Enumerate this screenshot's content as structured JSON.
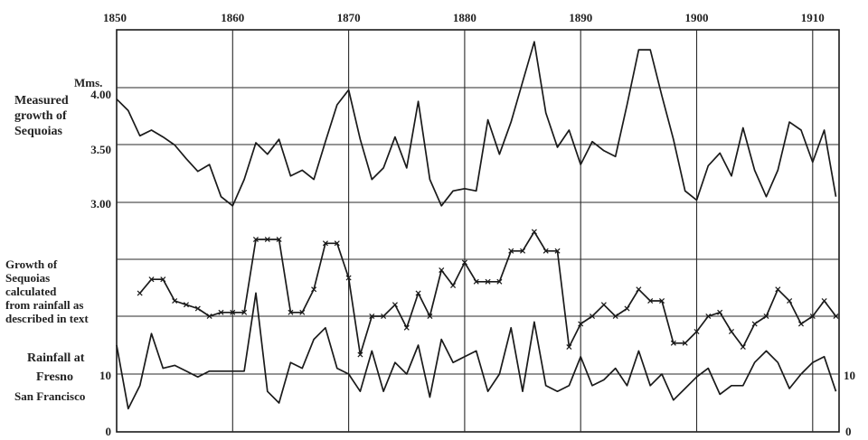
{
  "chart_data": {
    "type": "line",
    "x_range": [
      1850,
      1912
    ],
    "x_ticks": [
      "1850",
      "1860",
      "1870",
      "1880",
      "1890",
      "1900",
      "1910"
    ],
    "panels": [
      {
        "id": "measured",
        "labels": [
          "Measured",
          "growth of",
          "Sequoias"
        ],
        "unit_label": "Mms.",
        "y_ticks": [
          "4.00",
          "3.50",
          "3.00"
        ],
        "ylim": [
          2.5,
          4.5
        ],
        "series": {
          "name": "Measured growth of Sequoias",
          "x": [
            1850,
            1851,
            1852,
            1853,
            1854,
            1855,
            1856,
            1857,
            1858,
            1859,
            1860,
            1861,
            1862,
            1863,
            1864,
            1865,
            1866,
            1867,
            1868,
            1869,
            1870,
            1871,
            1872,
            1873,
            1874,
            1875,
            1876,
            1877,
            1878,
            1879,
            1880,
            1881,
            1882,
            1883,
            1884,
            1885,
            1886,
            1887,
            1888,
            1889,
            1890,
            1891,
            1892,
            1893,
            1894,
            1895,
            1896,
            1897,
            1898,
            1899,
            1900,
            1901,
            1902,
            1903,
            1904,
            1905,
            1906,
            1907,
            1908,
            1909,
            1910,
            1911,
            1912
          ],
          "y": [
            3.9,
            3.8,
            3.58,
            3.63,
            3.57,
            3.5,
            3.38,
            3.27,
            3.33,
            3.05,
            2.97,
            3.2,
            3.52,
            3.42,
            3.55,
            3.23,
            3.28,
            3.2,
            3.53,
            3.85,
            3.98,
            3.55,
            3.2,
            3.3,
            3.57,
            3.3,
            3.88,
            3.2,
            2.97,
            3.1,
            3.12,
            3.1,
            3.72,
            3.42,
            3.7,
            4.05,
            4.4,
            3.78,
            3.48,
            3.63,
            3.33,
            3.53,
            3.45,
            3.4,
            3.85,
            4.33,
            4.33,
            3.93,
            3.55,
            3.1,
            3.02,
            3.32,
            3.43,
            3.23,
            3.65,
            3.28,
            3.05,
            3.28,
            3.7,
            3.63,
            3.35,
            3.63,
            3.05
          ]
        }
      },
      {
        "id": "calculated",
        "labels": [
          "Growth of",
          "Sequoias",
          "calculated",
          "from rainfall as",
          "described in text"
        ],
        "series": {
          "name": "Growth of Sequoias calculated from rainfall",
          "x": [
            1852,
            1853,
            1854,
            1855,
            1856,
            1857,
            1858,
            1859,
            1860,
            1861,
            1862,
            1863,
            1864,
            1865,
            1866,
            1867,
            1868,
            1869,
            1870,
            1871,
            1872,
            1873,
            1874,
            1875,
            1876,
            1877,
            1878,
            1879,
            1880,
            1881,
            1882,
            1883,
            1884,
            1885,
            1886,
            1887,
            1888,
            1889,
            1890,
            1891,
            1892,
            1893,
            1894,
            1895,
            1896,
            1897,
            1898,
            1899,
            1900,
            1901,
            1902,
            1903,
            1904,
            1905,
            1906,
            1907,
            1908,
            1909,
            1910,
            1911,
            1912
          ],
          "y": [
            0.3,
            0.48,
            0.48,
            0.2,
            0.15,
            0.1,
            0,
            0.05,
            0.05,
            0.05,
            1.0,
            1.0,
            1.0,
            0.05,
            0.05,
            0.35,
            0.95,
            0.95,
            0.5,
            -0.5,
            0,
            0,
            0.15,
            -0.15,
            0.3,
            0,
            0.6,
            0.4,
            0.7,
            0.45,
            0.45,
            0.45,
            0.85,
            0.85,
            1.1,
            0.85,
            0.85,
            -0.4,
            -0.1,
            0,
            0.15,
            0,
            0.1,
            0.35,
            0.2,
            0.2,
            -0.35,
            -0.35,
            -0.2,
            0,
            0.05,
            -0.2,
            -0.4,
            -0.1,
            0,
            0.35,
            0.2,
            -0.1,
            0,
            0.2,
            0
          ]
        }
      },
      {
        "id": "rainfall",
        "labels": [
          "Rainfall at",
          "Fresno",
          "San Francisco"
        ],
        "y_ticks_left": [
          "10",
          "0"
        ],
        "y_ticks_right": [
          "10",
          "0"
        ],
        "ylim": [
          0,
          20
        ],
        "series": {
          "name": "Rainfall at Fresno / San Francisco",
          "x": [
            1850,
            1851,
            1852,
            1853,
            1854,
            1855,
            1856,
            1857,
            1858,
            1859,
            1860,
            1861,
            1862,
            1863,
            1864,
            1865,
            1866,
            1867,
            1868,
            1869,
            1870,
            1871,
            1872,
            1873,
            1874,
            1875,
            1876,
            1877,
            1878,
            1879,
            1880,
            1881,
            1882,
            1883,
            1884,
            1885,
            1886,
            1887,
            1888,
            1889,
            1890,
            1891,
            1892,
            1893,
            1894,
            1895,
            1896,
            1897,
            1898,
            1899,
            1900,
            1901,
            1902,
            1903,
            1904,
            1905,
            1906,
            1907,
            1908,
            1909,
            1910,
            1911,
            1912
          ],
          "y": [
            15,
            4,
            8,
            17,
            11,
            11.5,
            10.5,
            9.5,
            10.5,
            10.5,
            10.5,
            10.5,
            24,
            7,
            5,
            12,
            11,
            16,
            18,
            11,
            10,
            7,
            14,
            7,
            12,
            10,
            15,
            6,
            16,
            12,
            13,
            14,
            7,
            10,
            18,
            7,
            19,
            8,
            7,
            8,
            13,
            8,
            9,
            11,
            8,
            14,
            8,
            10,
            5.5,
            7.5,
            9.5,
            11,
            6.5,
            8,
            8,
            12,
            14,
            12,
            7.5,
            10,
            12,
            13,
            7
          ]
        }
      }
    ]
  }
}
